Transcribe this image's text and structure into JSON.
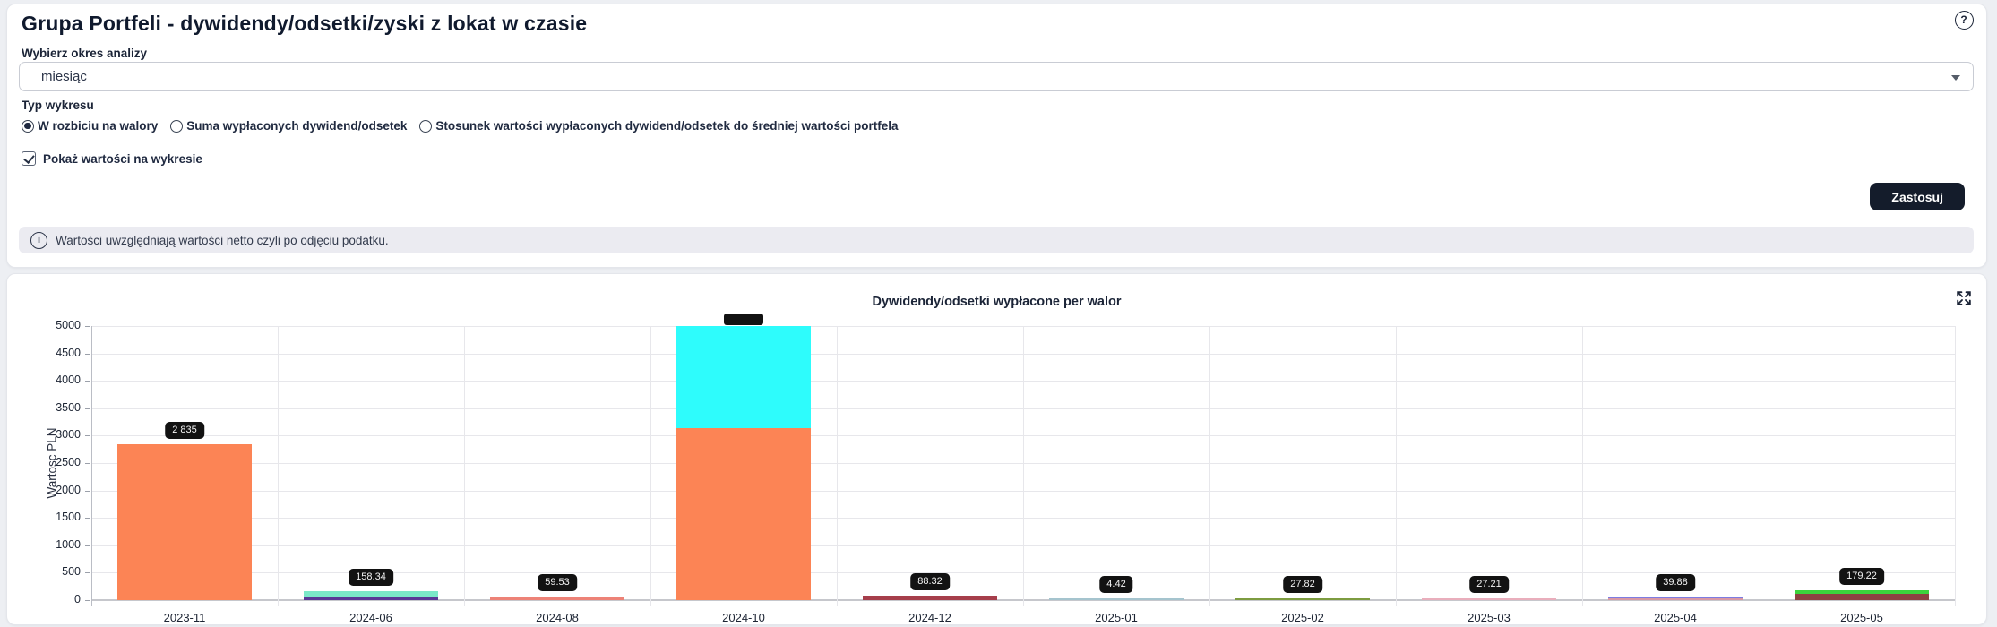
{
  "icons": {
    "help": "?",
    "info": "i",
    "expand": "fullscreen-arrows",
    "dropdown": "caret-down"
  },
  "filters": {
    "title": "Grupa Portfeli - dywidendy/odsetki/zyski z lokat w czasie",
    "period_label": "Wybierz okres analizy",
    "period_value": "miesiąc",
    "chart_type_label": "Typ wykresu",
    "chart_type_options": [
      {
        "label": "W rozbiciu na walory",
        "selected": true
      },
      {
        "label": "Suma wypłaconych dywidend/odsetek",
        "selected": false
      },
      {
        "label": "Stosunek wartości wypłaconych dywidend/odsetek do średniej wartości portfela",
        "selected": false
      }
    ],
    "show_values_label": "Pokaż wartości na wykresie",
    "show_values_checked": true,
    "apply_label": "Zastosuj",
    "info_text": "Wartości uwzględniają wartości netto czyli po odjęciu podatku."
  },
  "chart_data": {
    "type": "bar",
    "stacked": true,
    "title": "Dywidendy/odsetki wypłacone per walor",
    "xlabel": "",
    "ylabel": "Wartosc PLN",
    "ylim": [
      0,
      5000
    ],
    "ytick_step": 500,
    "grid": true,
    "value_labels_shown": true,
    "categories": [
      "2023-11",
      "2024-06",
      "2024-08",
      "2024-10",
      "2024-12",
      "2025-01",
      "2025-02",
      "2025-03",
      "2025-04",
      "2025-05"
    ],
    "bars": [
      {
        "category": "2023-11",
        "label": "2 835",
        "segments": [
          {
            "value": 2835,
            "color": "#fc8455"
          }
        ]
      },
      {
        "category": "2024-06",
        "label": "158.34",
        "segments": [
          {
            "value": 57,
            "color": "#5a3896"
          },
          {
            "value": 101.34,
            "color": "#7be8c8"
          }
        ]
      },
      {
        "category": "2024-08",
        "label": "59.53",
        "segments": [
          {
            "value": 59.53,
            "color": "#ed8277"
          }
        ]
      },
      {
        "category": "2024-10",
        "label": "",
        "label_clipped": true,
        "segments": [
          {
            "value": 3135,
            "color": "#fc8455"
          },
          {
            "value": null,
            "clipped_at_top": true,
            "color": "#2efcfc"
          }
        ]
      },
      {
        "category": "2024-12",
        "label": "88.32",
        "segments": [
          {
            "value": 88.32,
            "color": "#a63e4b"
          }
        ]
      },
      {
        "category": "2025-01",
        "label": "4.42",
        "segments": [
          {
            "value": 4.42,
            "color": "#a5c4ce"
          }
        ]
      },
      {
        "category": "2025-02",
        "label": "27.82",
        "segments": [
          {
            "value": 27.82,
            "color": "#7d9c40"
          }
        ]
      },
      {
        "category": "2025-03",
        "label": "27.21",
        "segments": [
          {
            "value": 27.21,
            "color": "#e9aebc"
          }
        ]
      },
      {
        "category": "2025-04",
        "label": "39.88",
        "segments": [
          {
            "value": 16,
            "color": "#d998a5"
          },
          {
            "value": 23.88,
            "color": "#7c7ce2"
          }
        ]
      },
      {
        "category": "2025-05",
        "label": "179.22",
        "segments": [
          {
            "value": 114,
            "color": "#8d4242"
          },
          {
            "value": 65.22,
            "color": "#3cd43c"
          }
        ]
      }
    ]
  }
}
